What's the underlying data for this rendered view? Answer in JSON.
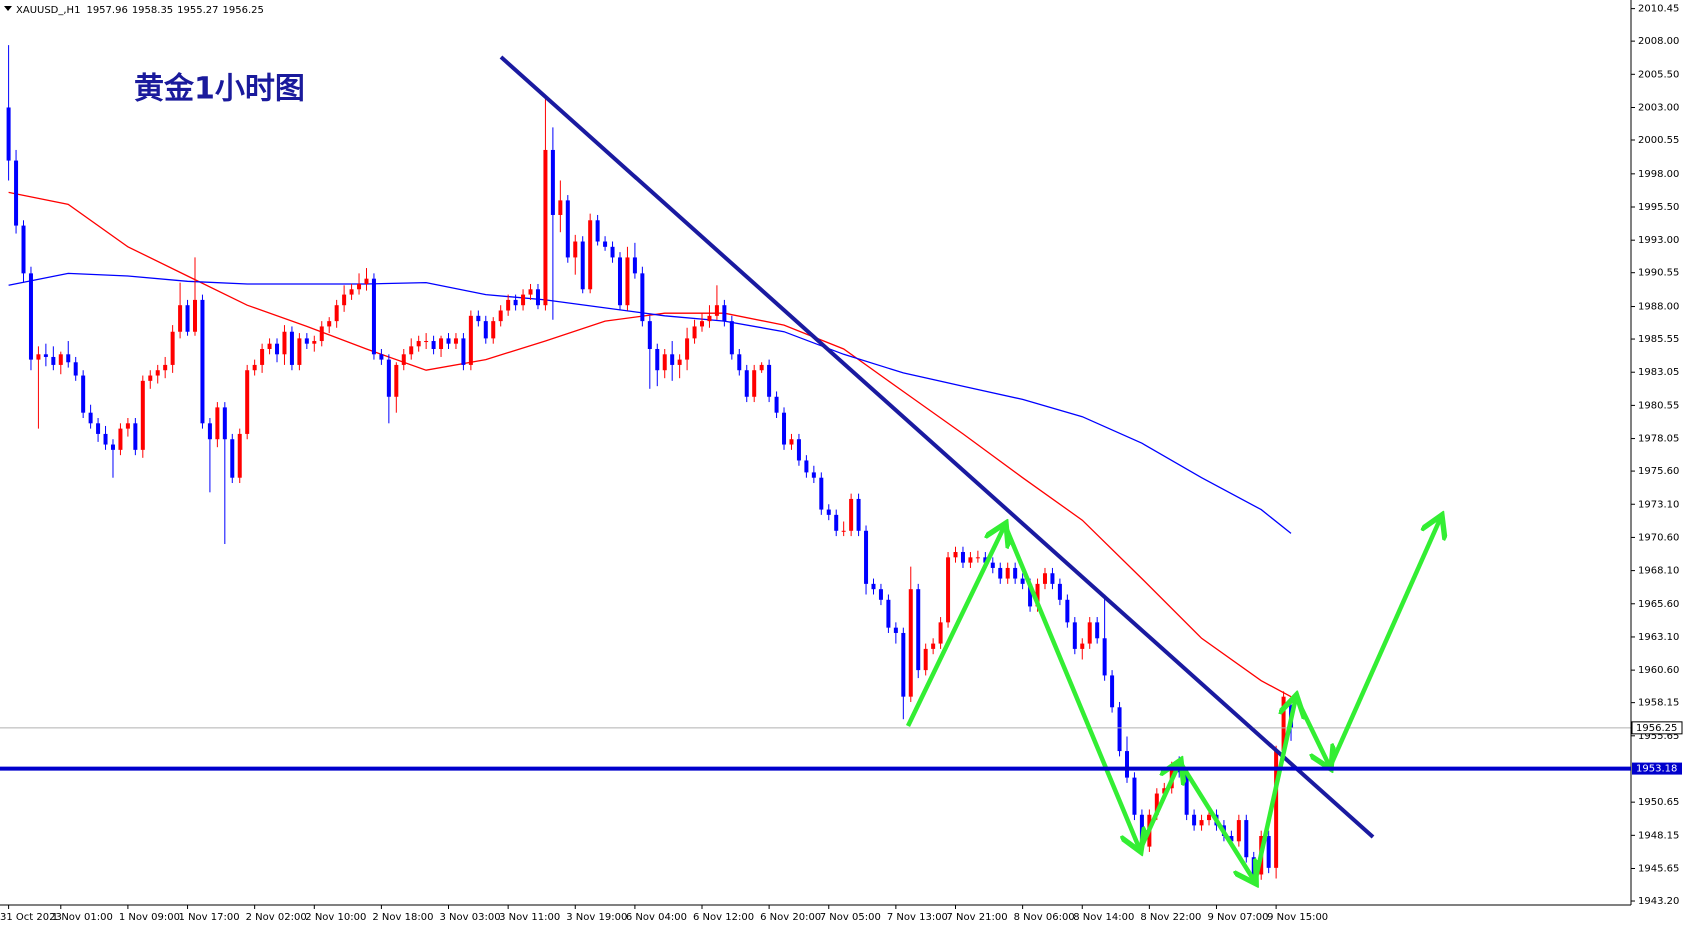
{
  "chart_data": {
    "type": "candlestick",
    "symbol": "XAUUSD_,H1",
    "title": "黄金1小时图",
    "up_color": "#ff0000",
    "down_color": "#0000ff",
    "hline": 1953.18,
    "hline_color": "#0000cc",
    "ylim": [
      1942.9,
      2011.1
    ],
    "yticks": [
      2010.45,
      {
        "value": 2008,
        "label": "2008.00"
      },
      {
        "value": 2005.5,
        "label": "2005.50"
      },
      {
        "value": 2003,
        "label": "2003.00"
      },
      2000.55,
      {
        "value": 1998,
        "label": "1998.00"
      },
      {
        "value": 1995.5,
        "label": "1995.50"
      },
      {
        "value": 1993,
        "label": "1993.00"
      },
      1990.55,
      {
        "value": 1988,
        "label": "1988.00"
      },
      1985.55,
      1983.05,
      1980.55,
      1978.05,
      {
        "value": 1975.6,
        "label": "1975.60"
      },
      {
        "value": 1973.1,
        "label": "1973.10"
      },
      {
        "value": 1970.6,
        "label": "1970.60"
      },
      {
        "value": 1968.1,
        "label": "1968.10"
      },
      {
        "value": 1965.6,
        "label": "1965.60"
      },
      {
        "value": 1963.1,
        "label": "1963.10"
      },
      {
        "value": 1960.6,
        "label": "1960.60"
      },
      1958.15,
      1955.65,
      1950.65,
      1948.15,
      1945.65,
      {
        "value": 1943.2,
        "label": "1943.20"
      }
    ],
    "grid": false,
    "categories": [
      "31 Oct 2023",
      null,
      null,
      null,
      null,
      null,
      null,
      "1 Nov 01:00",
      null,
      null,
      null,
      null,
      null,
      null,
      null,
      null,
      "1 Nov 09:00",
      null,
      null,
      null,
      null,
      null,
      null,
      null,
      "1 Nov 17:00",
      null,
      null,
      null,
      null,
      null,
      null,
      null,
      null,
      "2 Nov 02:00",
      null,
      null,
      null,
      null,
      null,
      null,
      null,
      "2 Nov 10:00",
      null,
      null,
      null,
      null,
      null,
      null,
      null,
      null,
      "2 Nov 18:00",
      null,
      null,
      null,
      null,
      null,
      null,
      null,
      null,
      "3 Nov 03:00",
      null,
      null,
      null,
      null,
      null,
      null,
      null,
      "3 Nov 11:00",
      null,
      null,
      null,
      null,
      null,
      null,
      null,
      null,
      "3 Nov 19:00",
      null,
      null,
      null,
      null,
      null,
      null,
      null,
      "6 Nov 04:00",
      null,
      null,
      null,
      null,
      null,
      null,
      null,
      null,
      "6 Nov 12:00",
      null,
      null,
      null,
      null,
      null,
      null,
      null,
      null,
      "6 Nov 20:00",
      null,
      null,
      null,
      null,
      null,
      null,
      null,
      "7 Nov 05:00",
      null,
      null,
      null,
      null,
      null,
      null,
      null,
      null,
      "7 Nov 13:00",
      null,
      null,
      null,
      null,
      null,
      null,
      null,
      "7 Nov 21:00",
      null,
      null,
      null,
      null,
      null,
      null,
      null,
      null,
      "8 Nov 06:00",
      null,
      null,
      null,
      null,
      null,
      null,
      null,
      "8 Nov 14:00",
      null,
      null,
      null,
      null,
      null,
      null,
      null,
      null,
      "8 Nov 22:00",
      null,
      null,
      null,
      null,
      null,
      null,
      null,
      null,
      "9 Nov 07:00",
      null,
      null,
      null,
      null,
      null,
      null,
      null,
      "9 Nov 15:00",
      null,
      null
    ],
    "candles": [
      [
        2003.0,
        2007.7,
        1997.5,
        1999.0
      ],
      [
        1999.0,
        1999.8,
        1993.5,
        1994.1
      ],
      [
        1994.1,
        1994.5,
        1989.8,
        1990.5
      ],
      [
        1990.5,
        1991.0,
        1983.2,
        1984.0
      ],
      [
        1984.0,
        1985.0,
        1978.8,
        1984.4
      ],
      [
        1984.4,
        1985.2,
        1983.5,
        1984.2
      ],
      [
        1984.2,
        1985.0,
        1983.2,
        1983.6
      ],
      [
        1983.6,
        1984.6,
        1982.9,
        1984.4
      ],
      [
        1984.4,
        1985.4,
        1983.4,
        1983.8
      ],
      [
        1983.8,
        1984.2,
        1982.4,
        1982.8
      ],
      [
        1982.8,
        1983.2,
        1979.6,
        1980.0
      ],
      [
        1980.0,
        1980.6,
        1978.8,
        1979.2
      ],
      [
        1979.2,
        1979.6,
        1977.8,
        1978.4
      ],
      [
        1978.4,
        1979.0,
        1977.2,
        1977.6
      ],
      [
        1977.6,
        1978.0,
        1975.1,
        1977.2
      ],
      [
        1977.2,
        1979.2,
        1976.8,
        1978.8
      ],
      [
        1978.8,
        1979.6,
        1978.2,
        1979.2
      ],
      [
        1979.2,
        1979.6,
        1976.8,
        1977.2
      ],
      [
        1977.2,
        1982.8,
        1976.6,
        1982.4
      ],
      [
        1982.4,
        1983.2,
        1981.8,
        1982.8
      ],
      [
        1982.8,
        1983.6,
        1982.2,
        1983.2
      ],
      [
        1983.2,
        1984.2,
        1982.6,
        1983.6
      ],
      [
        1983.6,
        1986.6,
        1983.0,
        1986.1
      ],
      [
        1986.1,
        1989.8,
        1985.6,
        1988.1
      ],
      [
        1988.1,
        1988.5,
        1985.8,
        1986.1
      ],
      [
        1986.1,
        1991.7,
        1985.8,
        1988.5
      ],
      [
        1988.5,
        1988.9,
        1978.8,
        1979.2
      ],
      [
        1979.2,
        1979.6,
        1974.0,
        1978.0
      ],
      [
        1978.0,
        1980.8,
        1977.4,
        1980.4
      ],
      [
        1980.4,
        1980.8,
        1970.1,
        1978.0
      ],
      [
        1978.0,
        1978.4,
        1974.7,
        1975.1
      ],
      [
        1975.1,
        1978.8,
        1974.7,
        1978.4
      ],
      [
        1978.4,
        1983.6,
        1978.0,
        1983.2
      ],
      [
        1983.2,
        1984.0,
        1982.8,
        1983.6
      ],
      [
        1983.6,
        1985.2,
        1983.0,
        1984.8
      ],
      [
        1984.8,
        1985.6,
        1984.4,
        1985.2
      ],
      [
        1985.2,
        1985.6,
        1983.8,
        1984.4
      ],
      [
        1984.4,
        1986.6,
        1983.6,
        1986.1
      ],
      [
        1986.1,
        1986.5,
        1983.2,
        1983.6
      ],
      [
        1983.6,
        1986.0,
        1983.2,
        1985.6
      ],
      [
        1985.6,
        1986.0,
        1984.8,
        1985.2
      ],
      [
        1985.2,
        1985.8,
        1984.6,
        1985.4
      ],
      [
        1985.4,
        1986.9,
        1985.0,
        1986.5
      ],
      [
        1986.5,
        1987.2,
        1986.0,
        1986.9
      ],
      [
        1986.9,
        1988.5,
        1986.4,
        1988.1
      ],
      [
        1988.1,
        1989.6,
        1987.6,
        1988.9
      ],
      [
        1988.9,
        1989.7,
        1988.5,
        1989.3
      ],
      [
        1989.3,
        1990.5,
        1988.9,
        1989.7
      ],
      [
        1989.7,
        1990.9,
        1989.2,
        1990.1
      ],
      [
        1990.1,
        1990.5,
        1984.0,
        1984.4
      ],
      [
        1984.4,
        1984.8,
        1983.6,
        1984.0
      ],
      [
        1984.0,
        1984.4,
        1979.2,
        1981.2
      ],
      [
        1981.2,
        1983.8,
        1980.0,
        1983.6
      ],
      [
        1983.6,
        1984.8,
        1983.2,
        1984.4
      ],
      [
        1984.4,
        1985.6,
        1984.0,
        1985.0
      ],
      [
        1985.0,
        1985.8,
        1984.6,
        1985.4
      ],
      [
        1985.4,
        1986.0,
        1984.8,
        1985.4
      ],
      [
        1985.4,
        1985.8,
        1984.4,
        1984.8
      ],
      [
        1984.8,
        1985.8,
        1984.2,
        1985.6
      ],
      [
        1985.6,
        1986.0,
        1984.8,
        1985.2
      ],
      [
        1985.2,
        1986.0,
        1984.8,
        1985.6
      ],
      [
        1985.6,
        1986.0,
        1983.2,
        1983.6
      ],
      [
        1983.6,
        1987.7,
        1983.2,
        1987.3
      ],
      [
        1987.3,
        1987.7,
        1986.5,
        1986.9
      ],
      [
        1986.9,
        1987.3,
        1985.2,
        1985.6
      ],
      [
        1985.6,
        1987.2,
        1985.2,
        1986.9
      ],
      [
        1986.9,
        1988.1,
        1986.5,
        1987.7
      ],
      [
        1987.7,
        1988.9,
        1987.3,
        1988.5
      ],
      [
        1988.5,
        1988.9,
        1987.7,
        1988.1
      ],
      [
        1988.1,
        1989.3,
        1987.7,
        1988.9
      ],
      [
        1988.9,
        1989.7,
        1988.5,
        1989.3
      ],
      [
        1989.3,
        1989.7,
        1987.8,
        1988.1
      ],
      [
        1988.1,
        2003.8,
        1987.7,
        1999.8
      ],
      [
        1999.8,
        2001.5,
        1987.0,
        1994.9
      ],
      [
        1994.9,
        1997.5,
        1993.6,
        1996.0
      ],
      [
        1996.0,
        1996.4,
        1991.3,
        1991.7
      ],
      [
        1991.7,
        1993.4,
        1990.4,
        1992.9
      ],
      [
        1992.9,
        1993.3,
        1989.0,
        1989.3
      ],
      [
        1989.3,
        1995.0,
        1989.0,
        1994.5
      ],
      [
        1994.5,
        1994.9,
        1992.6,
        1992.9
      ],
      [
        1992.9,
        1993.3,
        1992.2,
        1992.5
      ],
      [
        1992.5,
        1992.9,
        1991.3,
        1991.7
      ],
      [
        1991.7,
        1992.1,
        1987.7,
        1988.1
      ],
      [
        1988.1,
        1992.5,
        1987.7,
        1991.7
      ],
      [
        1991.7,
        1992.8,
        1990.1,
        1990.5
      ],
      [
        1990.5,
        1991.0,
        1986.5,
        1986.9
      ],
      [
        1986.9,
        1987.3,
        1981.8,
        1984.8
      ],
      [
        1984.8,
        1985.2,
        1982.0,
        1983.2
      ],
      [
        1983.2,
        1984.8,
        1982.6,
        1984.4
      ],
      [
        1984.4,
        1985.4,
        1982.4,
        1983.6
      ],
      [
        1983.6,
        1984.4,
        1982.6,
        1984.0
      ],
      [
        1984.0,
        1986.4,
        1983.2,
        1985.6
      ],
      [
        1985.6,
        1987.0,
        1985.2,
        1986.5
      ],
      [
        1986.5,
        1987.5,
        1986.1,
        1986.9
      ],
      [
        1986.9,
        1988.1,
        1986.4,
        1987.3
      ],
      [
        1987.3,
        1989.6,
        1987.0,
        1988.1
      ],
      [
        1988.1,
        1988.5,
        1986.5,
        1986.9
      ],
      [
        1986.9,
        1987.3,
        1984.0,
        1984.4
      ],
      [
        1984.4,
        1984.8,
        1982.8,
        1983.2
      ],
      [
        1983.2,
        1983.6,
        1980.8,
        1981.2
      ],
      [
        1981.2,
        1983.6,
        1980.8,
        1983.2
      ],
      [
        1983.2,
        1983.8,
        1983.0,
        1983.6
      ],
      [
        1983.6,
        1984.0,
        1980.8,
        1981.2
      ],
      [
        1981.2,
        1981.6,
        1979.6,
        1980.0
      ],
      [
        1980.0,
        1980.4,
        1977.2,
        1977.6
      ],
      [
        1977.6,
        1978.4,
        1977.2,
        1978.0
      ],
      [
        1978.0,
        1978.4,
        1976.0,
        1976.4
      ],
      [
        1976.4,
        1976.8,
        1975.1,
        1975.5
      ],
      [
        1975.5,
        1976.0,
        1974.7,
        1975.1
      ],
      [
        1975.1,
        1975.5,
        1972.3,
        1972.7
      ],
      [
        1972.7,
        1973.1,
        1971.9,
        1972.3
      ],
      [
        1972.3,
        1972.7,
        1970.7,
        1971.1
      ],
      [
        1971.1,
        1971.8,
        1970.7,
        1971.1
      ],
      [
        1971.1,
        1973.9,
        1970.7,
        1973.5
      ],
      [
        1973.5,
        1973.9,
        1970.7,
        1971.1
      ],
      [
        1971.1,
        1971.5,
        1966.3,
        1967.1
      ],
      [
        1967.1,
        1967.5,
        1966.3,
        1966.7
      ],
      [
        1966.7,
        1967.1,
        1965.5,
        1965.9
      ],
      [
        1965.9,
        1966.3,
        1963.4,
        1963.8
      ],
      [
        1963.8,
        1964.2,
        1962.6,
        1963.4
      ],
      [
        1963.4,
        1963.8,
        1956.9,
        1958.6
      ],
      [
        1958.6,
        1968.4,
        1958.2,
        1966.7
      ],
      [
        1966.7,
        1967.1,
        1960.0,
        1960.6
      ],
      [
        1960.6,
        1962.6,
        1960.2,
        1962.2
      ],
      [
        1962.2,
        1963.0,
        1961.8,
        1962.6
      ],
      [
        1962.6,
        1964.6,
        1962.2,
        1964.2
      ],
      [
        1964.2,
        1969.5,
        1963.8,
        1969.1
      ],
      [
        1969.1,
        1969.9,
        1968.7,
        1969.5
      ],
      [
        1969.5,
        1969.9,
        1968.3,
        1968.7
      ],
      [
        1968.7,
        1969.5,
        1968.3,
        1969.1
      ],
      [
        1969.1,
        1969.6,
        1968.7,
        1969.1
      ],
      [
        1969.1,
        1969.5,
        1968.3,
        1968.7
      ],
      [
        1968.7,
        1969.1,
        1967.9,
        1968.3
      ],
      [
        1968.3,
        1968.7,
        1967.1,
        1967.5
      ],
      [
        1967.5,
        1968.7,
        1967.1,
        1968.3
      ],
      [
        1968.3,
        1968.7,
        1967.1,
        1967.5
      ],
      [
        1967.5,
        1967.9,
        1966.7,
        1967.1
      ],
      [
        1967.1,
        1967.5,
        1965.0,
        1965.4
      ],
      [
        1965.4,
        1967.5,
        1965.0,
        1967.1
      ],
      [
        1967.1,
        1968.3,
        1966.7,
        1967.9
      ],
      [
        1967.9,
        1968.3,
        1966.7,
        1967.1
      ],
      [
        1967.1,
        1967.5,
        1965.5,
        1965.9
      ],
      [
        1965.9,
        1966.3,
        1963.8,
        1964.2
      ],
      [
        1964.2,
        1964.6,
        1961.8,
        1962.2
      ],
      [
        1962.2,
        1963.0,
        1961.4,
        1962.6
      ],
      [
        1962.6,
        1964.6,
        1962.2,
        1964.2
      ],
      [
        1964.2,
        1964.6,
        1962.6,
        1963.0
      ],
      [
        1963.0,
        1966.3,
        1959.8,
        1960.2
      ],
      [
        1960.2,
        1960.6,
        1957.4,
        1957.8
      ],
      [
        1957.8,
        1958.2,
        1954.1,
        1954.5
      ],
      [
        1954.5,
        1955.6,
        1952.1,
        1952.5
      ],
      [
        1952.5,
        1952.9,
        1949.3,
        1949.7
      ],
      [
        1949.7,
        1950.1,
        1947.0,
        1947.3
      ],
      [
        1947.3,
        1950.1,
        1946.9,
        1949.7
      ],
      [
        1949.7,
        1951.7,
        1949.3,
        1951.3
      ],
      [
        1951.3,
        1952.1,
        1950.9,
        1951.7
      ],
      [
        1951.7,
        1953.7,
        1951.3,
        1953.3
      ],
      [
        1953.3,
        1954.1,
        1952.5,
        1952.9
      ],
      [
        1952.9,
        1953.3,
        1949.3,
        1949.7
      ],
      [
        1949.7,
        1950.1,
        1948.5,
        1948.9
      ],
      [
        1948.9,
        1949.7,
        1948.5,
        1949.3
      ],
      [
        1949.3,
        1950.1,
        1948.9,
        1949.7
      ],
      [
        1949.7,
        1950.1,
        1948.5,
        1948.9
      ],
      [
        1948.9,
        1949.3,
        1947.7,
        1948.1
      ],
      [
        1948.1,
        1948.5,
        1947.4,
        1947.7
      ],
      [
        1947.7,
        1949.7,
        1947.3,
        1949.3
      ],
      [
        1949.3,
        1949.7,
        1946.1,
        1946.5
      ],
      [
        1946.5,
        1946.9,
        1944.8,
        1945.2
      ],
      [
        1945.2,
        1948.5,
        1944.8,
        1948.1
      ],
      [
        1948.1,
        1948.5,
        1945.3,
        1945.7
      ],
      [
        1945.7,
        1954.9,
        1944.9,
        1954.5
      ],
      [
        1954.5,
        1959.0,
        1954.1,
        1958.6
      ],
      [
        1957.96,
        1958.35,
        1955.27,
        1956.25
      ]
    ],
    "moving_averages": [
      {
        "color": "#ff0000",
        "x": [
          0,
          8,
          16,
          24,
          32,
          40,
          48,
          56,
          64,
          72,
          80,
          88,
          96,
          104,
          112,
          120,
          128,
          136,
          144,
          152,
          160,
          168,
          172
        ],
        "values": [
          1996.6,
          1995.7,
          1992.5,
          1990.3,
          1988.1,
          1986.5,
          1984.8,
          1983.2,
          1984.0,
          1985.4,
          1986.9,
          1987.5,
          1987.5,
          1986.6,
          1984.8,
          1981.6,
          1978.4,
          1975.1,
          1971.9,
          1967.5,
          1963.0,
          1959.8,
          1958.6
        ]
      },
      {
        "color": "#0000ff",
        "x": [
          0,
          8,
          16,
          24,
          32,
          40,
          48,
          56,
          64,
          72,
          80,
          88,
          96,
          104,
          112,
          120,
          128,
          136,
          144,
          152,
          160,
          168,
          172
        ],
        "values": [
          1989.6,
          1990.5,
          1990.3,
          1989.9,
          1989.7,
          1989.7,
          1989.7,
          1989.8,
          1988.9,
          1988.5,
          1987.9,
          1987.3,
          1986.9,
          1986.1,
          1984.4,
          1983.0,
          1982.0,
          1981.0,
          1979.7,
          1977.7,
          1975.1,
          1972.7,
          1970.9
        ]
      }
    ]
  }
}
